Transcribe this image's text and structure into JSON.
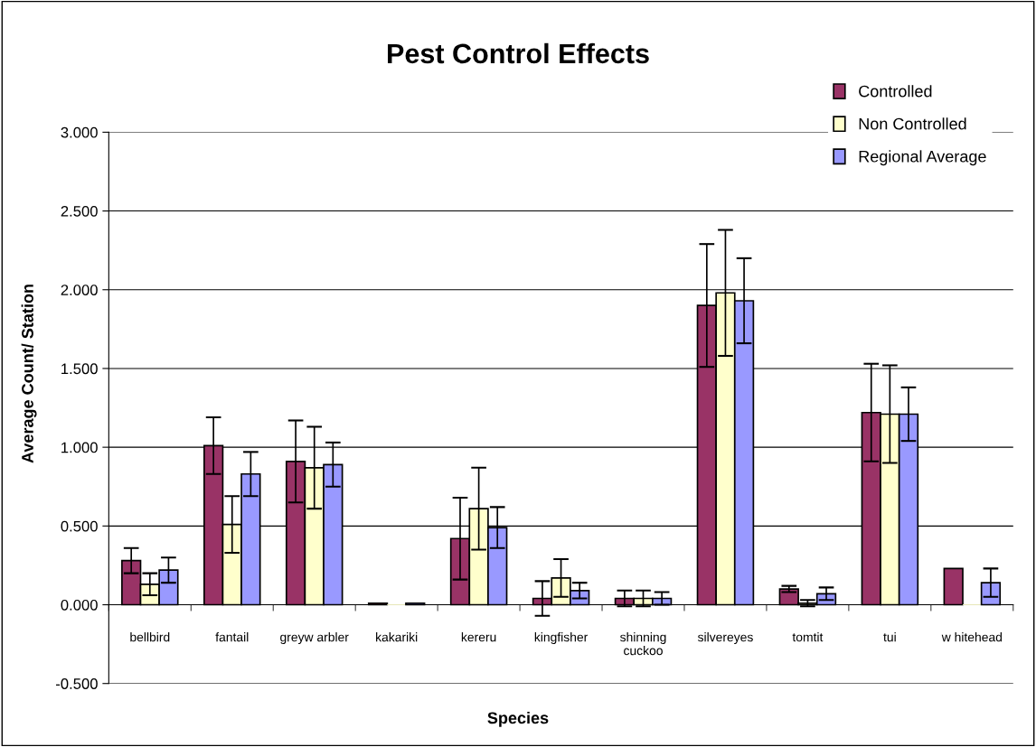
{
  "chart_data": {
    "type": "bar",
    "title": "Pest Control Effects",
    "xlabel": "Species",
    "ylabel": "Average Count/ Station",
    "categories": [
      "bellbird",
      "fantail",
      "greyw arbler",
      "kakariki",
      "kereru",
      "kingfisher",
      "shinning\ncuckoo",
      "silvereyes",
      "tomtit",
      "tui",
      "w hitehead"
    ],
    "series": [
      {
        "name": "Controlled",
        "color": "#993366",
        "values": [
          0.28,
          1.01,
          0.91,
          0.01,
          0.42,
          0.04,
          0.04,
          1.9,
          0.1,
          1.22,
          0.23
        ],
        "errors": [
          0.08,
          0.18,
          0.26,
          null,
          0.26,
          0.11,
          0.05,
          0.39,
          0.02,
          0.31,
          null
        ]
      },
      {
        "name": "Non Controlled",
        "color": "#ffffcc",
        "values": [
          0.13,
          0.51,
          0.87,
          0.0,
          0.61,
          0.17,
          0.04,
          1.98,
          0.01,
          1.21,
          0.0
        ],
        "errors": [
          0.07,
          0.18,
          0.26,
          null,
          0.26,
          0.12,
          0.05,
          0.4,
          0.02,
          0.31,
          null
        ]
      },
      {
        "name": "Regional Average",
        "color": "#9999ff",
        "values": [
          0.22,
          0.83,
          0.89,
          0.01,
          0.49,
          0.09,
          0.04,
          1.93,
          0.07,
          1.21,
          0.14
        ],
        "errors": [
          0.08,
          0.14,
          0.14,
          null,
          0.13,
          0.05,
          0.04,
          0.27,
          0.04,
          0.17,
          0.09
        ]
      }
    ],
    "ylim": [
      -0.5,
      3.0
    ],
    "yticks": [
      {
        "value": -0.5,
        "label": "-0.500"
      },
      {
        "value": 0,
        "label": "0.000"
      },
      {
        "value": 0.5,
        "label": "0.500"
      },
      {
        "value": 1.0,
        "label": "1.000"
      },
      {
        "value": 1.5,
        "label": "1.500"
      },
      {
        "value": 2.0,
        "label": "2.000"
      },
      {
        "value": 2.5,
        "label": "2.500"
      },
      {
        "value": 3.0,
        "label": "3.000"
      }
    ],
    "grid": "y",
    "legend": "top right"
  }
}
